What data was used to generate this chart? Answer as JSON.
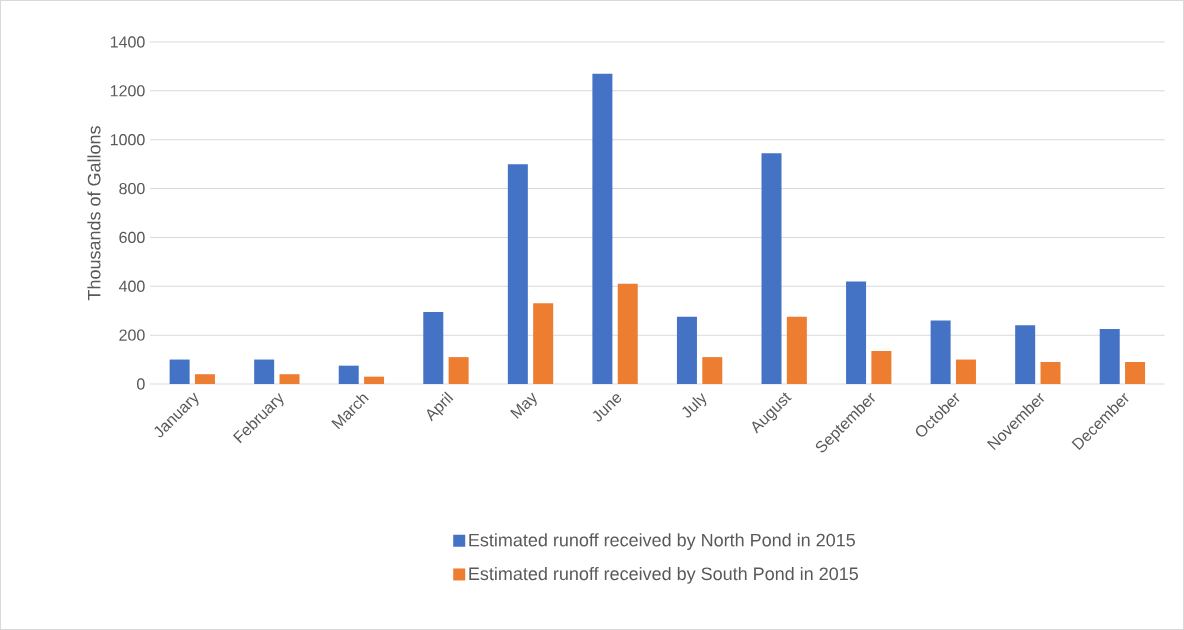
{
  "chart_data": {
    "type": "bar",
    "ylabel": "Thousands of Gallons",
    "categories": [
      "January",
      "February",
      "March",
      "April",
      "May",
      "June",
      "July",
      "August",
      "September",
      "October",
      "November",
      "December"
    ],
    "series": [
      {
        "name": "Estimated runoff received by North Pond in 2015",
        "color": "#4472c4",
        "values": [
          100,
          100,
          75,
          295,
          900,
          1270,
          275,
          945,
          420,
          260,
          240,
          225
        ]
      },
      {
        "name": "Estimated runoff received by South Pond in 2015",
        "color": "#ed7d31",
        "values": [
          40,
          40,
          30,
          110,
          330,
          410,
          110,
          275,
          135,
          100,
          90,
          90
        ]
      }
    ],
    "ylim": [
      0,
      1400
    ],
    "yticks": [
      0,
      200,
      400,
      600,
      800,
      1000,
      1200,
      1400
    ],
    "grid": "y",
    "legend": "bottom"
  }
}
